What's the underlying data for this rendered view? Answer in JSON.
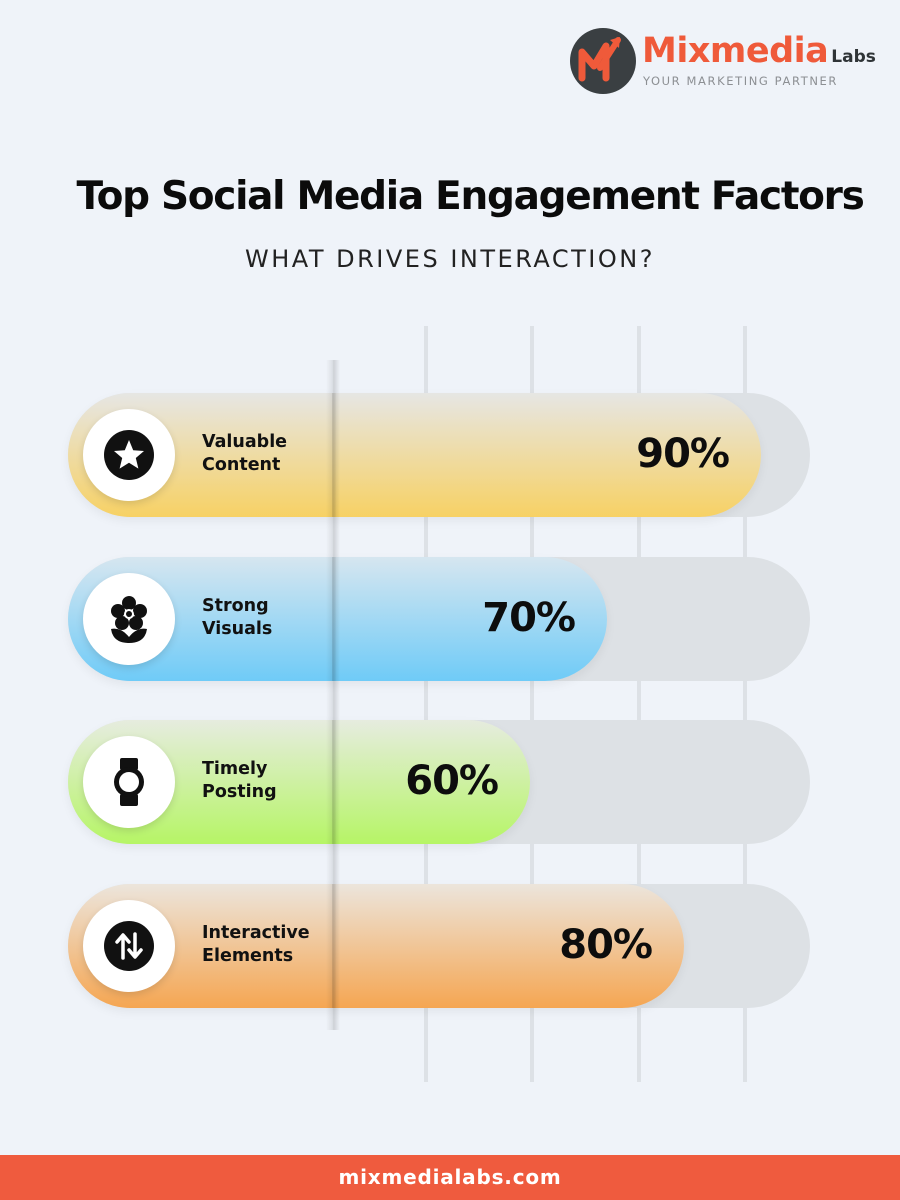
{
  "logo": {
    "name": "Mixmedia",
    "suffix": "Labs",
    "tagline": "YOUR MARKETING PARTNER"
  },
  "footer": {
    "url": "mixmedialabs.com"
  },
  "colors": {
    "accent": "#ef5b3e",
    "track": "#dde1e5",
    "background": "#eff3f9"
  },
  "chart_data": {
    "type": "bar",
    "orientation": "horizontal",
    "title": "Top Social Media Engagement Factors",
    "subtitle": "WHAT DRIVES INTERACTION?",
    "unit": "%",
    "xlim": [
      0,
      100
    ],
    "grid": true,
    "categories": [
      {
        "line1": "Valuable",
        "line2": "Content"
      },
      {
        "line1": "Strong",
        "line2": "Visuals"
      },
      {
        "line1": "Timely",
        "line2": "Posting"
      },
      {
        "line1": "Interactive",
        "line2": "Elements"
      }
    ],
    "values": [
      90,
      70,
      60,
      80
    ],
    "value_labels": [
      "90%",
      "70%",
      "60%",
      "80%"
    ],
    "icons": [
      "star-icon",
      "flower-icon",
      "watch-icon",
      "up-down-arrows-icon"
    ],
    "gradients": [
      [
        "#e6e6e4",
        "#f7d164"
      ],
      [
        "#d6e6f0",
        "#6fcbf7"
      ],
      [
        "#e6ecdf",
        "#b6f566"
      ],
      [
        "#ece5dc",
        "#f5a652"
      ]
    ]
  }
}
